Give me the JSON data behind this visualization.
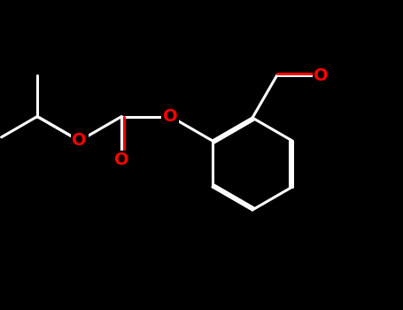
{
  "bg_color": "#000000",
  "bond_color": "#ffffff",
  "O_color": "#ff0000",
  "lw": 2.2,
  "dbo": 0.012,
  "fs": 14,
  "figsize": [
    4.55,
    3.5
  ],
  "dpi": 100,
  "xlim": [
    0,
    4.55
  ],
  "ylim": [
    0,
    3.5
  ]
}
